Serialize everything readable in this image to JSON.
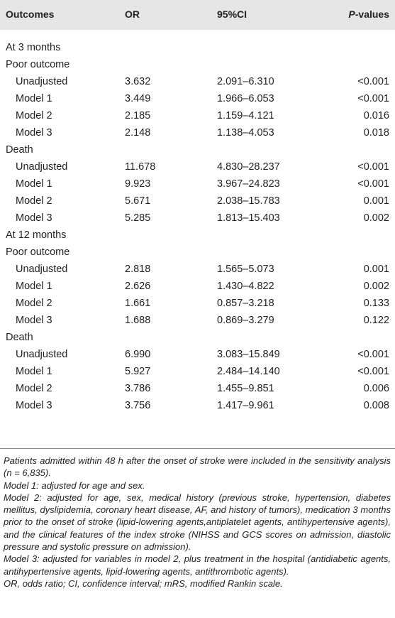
{
  "table": {
    "header": [
      "Outcomes",
      "OR",
      "95%CI",
      [
        "P",
        "-values"
      ]
    ],
    "rows": [
      [
        "At 3 months"
      ],
      [
        "Poor outcome"
      ],
      [
        "Unadjusted",
        "3.632",
        "2.091–6.310",
        "<0.001"
      ],
      [
        "Model 1",
        "3.449",
        "1.966–6.053",
        "<0.001"
      ],
      [
        "Model 2",
        "2.185",
        "1.159–4.121",
        "0.016"
      ],
      [
        "Model 3",
        "2.148",
        "1.138–4.053",
        "0.018"
      ],
      [
        "Death"
      ],
      [
        "Unadjusted",
        "11.678",
        "4.830–28.237",
        "<0.001"
      ],
      [
        "Model 1",
        "9.923",
        "3.967–24.823",
        "<0.001"
      ],
      [
        "Model 2",
        "5.671",
        "2.038–15.783",
        "0.001"
      ],
      [
        "Model 3",
        "5.285",
        "1.813–15.403",
        "0.002"
      ],
      [
        "At 12 months"
      ],
      [
        "Poor outcome"
      ],
      [
        "Unadjusted",
        "2.818",
        "1.565–5.073",
        "0.001"
      ],
      [
        "Model 1",
        "2.626",
        "1.430–4.822",
        "0.002"
      ],
      [
        "Model 2",
        "1.661",
        "0.857–3.218",
        "0.133"
      ],
      [
        "Model 3",
        "1.688",
        "0.869–3.279",
        "0.122"
      ],
      [
        "Death"
      ],
      [
        "Unadjusted",
        "6.990",
        "3.083–15.849",
        "<0.001"
      ],
      [
        "Model 1",
        "5.927",
        "2.484–14.140",
        "<0.001"
      ],
      [
        "Model 2",
        "3.786",
        "1.455–9.851",
        "0.006"
      ],
      [
        "Model 3",
        "3.756",
        "1.417–9.961",
        "0.008"
      ]
    ],
    "notes": [
      "Patients admitted within 48 h after the onset of stroke were included in the sensitivity analysis (n = 6,835).",
      "Model 1: adjusted for age and sex.",
      "Model 2: adjusted for age, sex, medical history (previous stroke, hypertension, diabetes mellitus, dyslipidemia, coronary heart disease, AF, and history of tumors), medication 3 months prior to the onset of stroke (lipid-lowering agents,antiplatelet agents, antihypertensive agents), and the clinical features of the index stroke (NIHSS and GCS scores on admission, diastolic pressure and systolic pressure on admission).",
      "Model 3: adjusted for variables in model 2, plus treatment in the hospital (antidiabetic agents, antihypertensive agents, lipid-lowering agents, antithrombotic agents).",
      "OR, odds ratio; CI, confidence interval; mRS, modified Rankin scale."
    ]
  }
}
